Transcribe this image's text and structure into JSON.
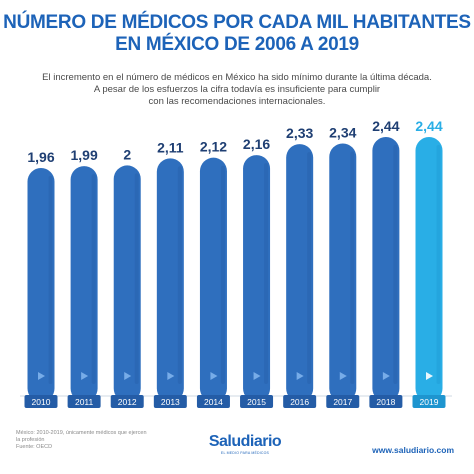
{
  "header": {
    "title_line1": "NÚMERO DE MÉDICOS POR CADA MIL HABITANTES",
    "title_line2": "EN MÉXICO DE 2006 A 2019",
    "subtitle_line1": "El incremento en el número de médicos en México ha sido mínimo durante la última década.",
    "subtitle_line2": "A pesar de los esfuerzos la cifra todavía es insuficiente para cumplir",
    "subtitle_line3": "con las recomendaciones internacionales."
  },
  "chart_data": {
    "type": "bar",
    "title": "NÚMERO DE MÉDICOS POR CADA MIL HABITANTES EN MÉXICO DE 2006 A 2019",
    "categories": [
      "2010",
      "2011",
      "2012",
      "2013",
      "2014",
      "2015",
      "2016",
      "2017",
      "2018",
      "2019"
    ],
    "values": [
      1.96,
      1.99,
      2,
      2.11,
      2.12,
      2.16,
      2.33,
      2.34,
      2.44,
      2.44
    ],
    "value_labels": [
      "1,96",
      "1,99",
      "2",
      "2,11",
      "2,12",
      "2,16",
      "2,33",
      "2,34",
      "2,44",
      "2,44"
    ],
    "xlabel": "",
    "ylabel": "",
    "grid": false,
    "legend": "none",
    "colors": {
      "bar": "#2f6fbe",
      "bar_dark": "#245ca6",
      "highlight": "#29aee6",
      "highlight_dark": "#1e95cf",
      "label": "#1f3f73",
      "year_text": "#ffffff"
    }
  },
  "footer": {
    "note_line1": "México: 2010-2019, únicamente médicos que ejercen",
    "note_line2": "la profesión",
    "note_line3": "Fuente: OECD",
    "logo_name": "Saludiario",
    "logo_tagline": "EL MEDIO PARA MÉDICOS",
    "website": "www.saludiario.com"
  }
}
